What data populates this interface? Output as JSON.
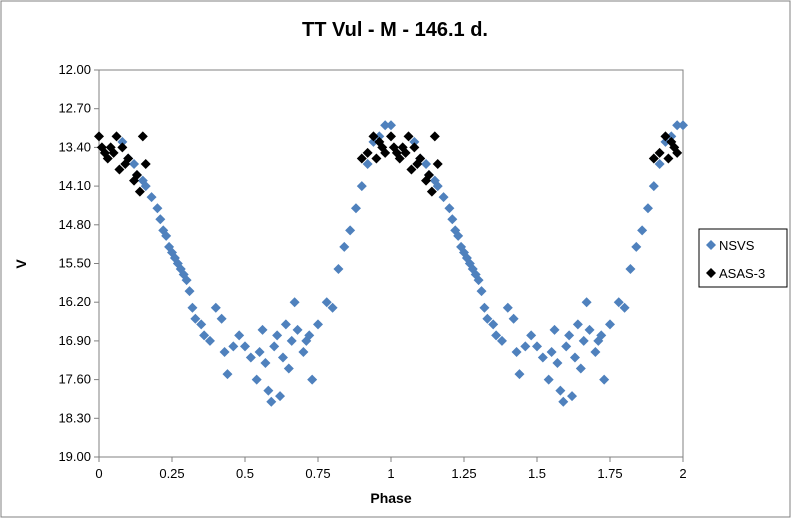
{
  "chart_data": {
    "type": "scatter",
    "title": "TT Vul - M - 146.1 d.",
    "xlabel": "Phase",
    "ylabel": "V",
    "xlim": [
      0,
      2
    ],
    "ylim": [
      19.0,
      12.0
    ],
    "y_inverted": true,
    "x_ticks": [
      "0",
      "0.25",
      "0.5",
      "0.75",
      "1",
      "1.25",
      "1.5",
      "1.75",
      "2"
    ],
    "y_ticks": [
      "12.00",
      "12.70",
      "13.40",
      "14.10",
      "14.80",
      "15.50",
      "16.20",
      "16.90",
      "17.60",
      "18.30",
      "19.00"
    ],
    "grid": false,
    "legend_position": "right",
    "series": [
      {
        "name": "NSVS",
        "color": "#4F81BD",
        "marker": "diamond",
        "points": [
          [
            0.08,
            13.3
          ],
          [
            0.1,
            13.6
          ],
          [
            0.12,
            13.7
          ],
          [
            0.13,
            13.9
          ],
          [
            0.15,
            14.0
          ],
          [
            0.16,
            14.1
          ],
          [
            0.18,
            14.3
          ],
          [
            0.2,
            14.5
          ],
          [
            0.21,
            14.7
          ],
          [
            0.22,
            14.9
          ],
          [
            0.23,
            15.0
          ],
          [
            0.24,
            15.2
          ],
          [
            0.25,
            15.3
          ],
          [
            0.26,
            15.4
          ],
          [
            0.27,
            15.5
          ],
          [
            0.28,
            15.6
          ],
          [
            0.29,
            15.7
          ],
          [
            0.3,
            15.8
          ],
          [
            0.31,
            16.0
          ],
          [
            0.32,
            16.3
          ],
          [
            0.33,
            16.5
          ],
          [
            0.35,
            16.6
          ],
          [
            0.36,
            16.8
          ],
          [
            0.38,
            16.9
          ],
          [
            0.4,
            16.3
          ],
          [
            0.42,
            16.5
          ],
          [
            0.43,
            17.1
          ],
          [
            0.44,
            17.5
          ],
          [
            0.46,
            17.0
          ],
          [
            0.48,
            16.8
          ],
          [
            0.5,
            17.0
          ],
          [
            0.52,
            17.2
          ],
          [
            0.54,
            17.6
          ],
          [
            0.55,
            17.1
          ],
          [
            0.56,
            16.7
          ],
          [
            0.57,
            17.3
          ],
          [
            0.58,
            17.8
          ],
          [
            0.59,
            18.0
          ],
          [
            0.6,
            17.0
          ],
          [
            0.61,
            16.8
          ],
          [
            0.62,
            17.9
          ],
          [
            0.63,
            17.2
          ],
          [
            0.64,
            16.6
          ],
          [
            0.65,
            17.4
          ],
          [
            0.66,
            16.9
          ],
          [
            0.67,
            16.2
          ],
          [
            0.68,
            16.7
          ],
          [
            0.7,
            17.1
          ],
          [
            0.71,
            16.9
          ],
          [
            0.72,
            16.8
          ],
          [
            0.73,
            17.6
          ],
          [
            0.75,
            16.6
          ],
          [
            0.78,
            16.2
          ],
          [
            0.8,
            16.3
          ],
          [
            0.82,
            15.6
          ],
          [
            0.84,
            15.2
          ],
          [
            0.86,
            14.9
          ],
          [
            0.88,
            14.5
          ],
          [
            0.9,
            14.1
          ],
          [
            0.92,
            13.7
          ],
          [
            0.94,
            13.3
          ],
          [
            0.96,
            13.2
          ],
          [
            0.98,
            13.0
          ],
          [
            1.0,
            13.0
          ],
          [
            1.08,
            13.3
          ],
          [
            1.1,
            13.6
          ],
          [
            1.12,
            13.7
          ],
          [
            1.13,
            13.9
          ],
          [
            1.15,
            14.0
          ],
          [
            1.16,
            14.1
          ],
          [
            1.18,
            14.3
          ],
          [
            1.2,
            14.5
          ],
          [
            1.21,
            14.7
          ],
          [
            1.22,
            14.9
          ],
          [
            1.23,
            15.0
          ],
          [
            1.24,
            15.2
          ],
          [
            1.25,
            15.3
          ],
          [
            1.26,
            15.4
          ],
          [
            1.27,
            15.5
          ],
          [
            1.28,
            15.6
          ],
          [
            1.29,
            15.7
          ],
          [
            1.3,
            15.8
          ],
          [
            1.31,
            16.0
          ],
          [
            1.32,
            16.3
          ],
          [
            1.33,
            16.5
          ],
          [
            1.35,
            16.6
          ],
          [
            1.36,
            16.8
          ],
          [
            1.38,
            16.9
          ],
          [
            1.4,
            16.3
          ],
          [
            1.42,
            16.5
          ],
          [
            1.43,
            17.1
          ],
          [
            1.44,
            17.5
          ],
          [
            1.46,
            17.0
          ],
          [
            1.48,
            16.8
          ],
          [
            1.5,
            17.0
          ],
          [
            1.52,
            17.2
          ],
          [
            1.54,
            17.6
          ],
          [
            1.55,
            17.1
          ],
          [
            1.56,
            16.7
          ],
          [
            1.57,
            17.3
          ],
          [
            1.58,
            17.8
          ],
          [
            1.59,
            18.0
          ],
          [
            1.6,
            17.0
          ],
          [
            1.61,
            16.8
          ],
          [
            1.62,
            17.9
          ],
          [
            1.63,
            17.2
          ],
          [
            1.64,
            16.6
          ],
          [
            1.65,
            17.4
          ],
          [
            1.66,
            16.9
          ],
          [
            1.67,
            16.2
          ],
          [
            1.68,
            16.7
          ],
          [
            1.7,
            17.1
          ],
          [
            1.71,
            16.9
          ],
          [
            1.72,
            16.8
          ],
          [
            1.73,
            17.6
          ],
          [
            1.75,
            16.6
          ],
          [
            1.78,
            16.2
          ],
          [
            1.8,
            16.3
          ],
          [
            1.82,
            15.6
          ],
          [
            1.84,
            15.2
          ],
          [
            1.86,
            14.9
          ],
          [
            1.88,
            14.5
          ],
          [
            1.9,
            14.1
          ],
          [
            1.92,
            13.7
          ],
          [
            1.94,
            13.3
          ],
          [
            1.96,
            13.2
          ],
          [
            1.98,
            13.0
          ],
          [
            2.0,
            13.0
          ]
        ]
      },
      {
        "name": "ASAS-3",
        "color": "#000000",
        "marker": "diamond",
        "points": [
          [
            0.0,
            13.2
          ],
          [
            0.01,
            13.4
          ],
          [
            0.02,
            13.5
          ],
          [
            0.03,
            13.6
          ],
          [
            0.04,
            13.4
          ],
          [
            0.05,
            13.5
          ],
          [
            0.06,
            13.2
          ],
          [
            0.07,
            13.8
          ],
          [
            0.08,
            13.4
          ],
          [
            0.09,
            13.7
          ],
          [
            0.1,
            13.6
          ],
          [
            0.12,
            14.0
          ],
          [
            0.13,
            13.9
          ],
          [
            0.14,
            14.2
          ],
          [
            0.15,
            13.2
          ],
          [
            0.16,
            13.7
          ],
          [
            0.9,
            13.6
          ],
          [
            0.92,
            13.5
          ],
          [
            0.94,
            13.2
          ],
          [
            0.95,
            13.6
          ],
          [
            0.96,
            13.3
          ],
          [
            0.97,
            13.4
          ],
          [
            0.98,
            13.5
          ],
          [
            1.0,
            13.2
          ],
          [
            1.01,
            13.4
          ],
          [
            1.02,
            13.5
          ],
          [
            1.03,
            13.6
          ],
          [
            1.04,
            13.4
          ],
          [
            1.05,
            13.5
          ],
          [
            1.06,
            13.2
          ],
          [
            1.07,
            13.8
          ],
          [
            1.08,
            13.4
          ],
          [
            1.09,
            13.7
          ],
          [
            1.1,
            13.6
          ],
          [
            1.12,
            14.0
          ],
          [
            1.13,
            13.9
          ],
          [
            1.14,
            14.2
          ],
          [
            1.15,
            13.2
          ],
          [
            1.16,
            13.7
          ],
          [
            1.9,
            13.6
          ],
          [
            1.92,
            13.5
          ],
          [
            1.94,
            13.2
          ],
          [
            1.95,
            13.6
          ],
          [
            1.96,
            13.3
          ],
          [
            1.97,
            13.4
          ],
          [
            1.98,
            13.5
          ]
        ]
      }
    ]
  }
}
